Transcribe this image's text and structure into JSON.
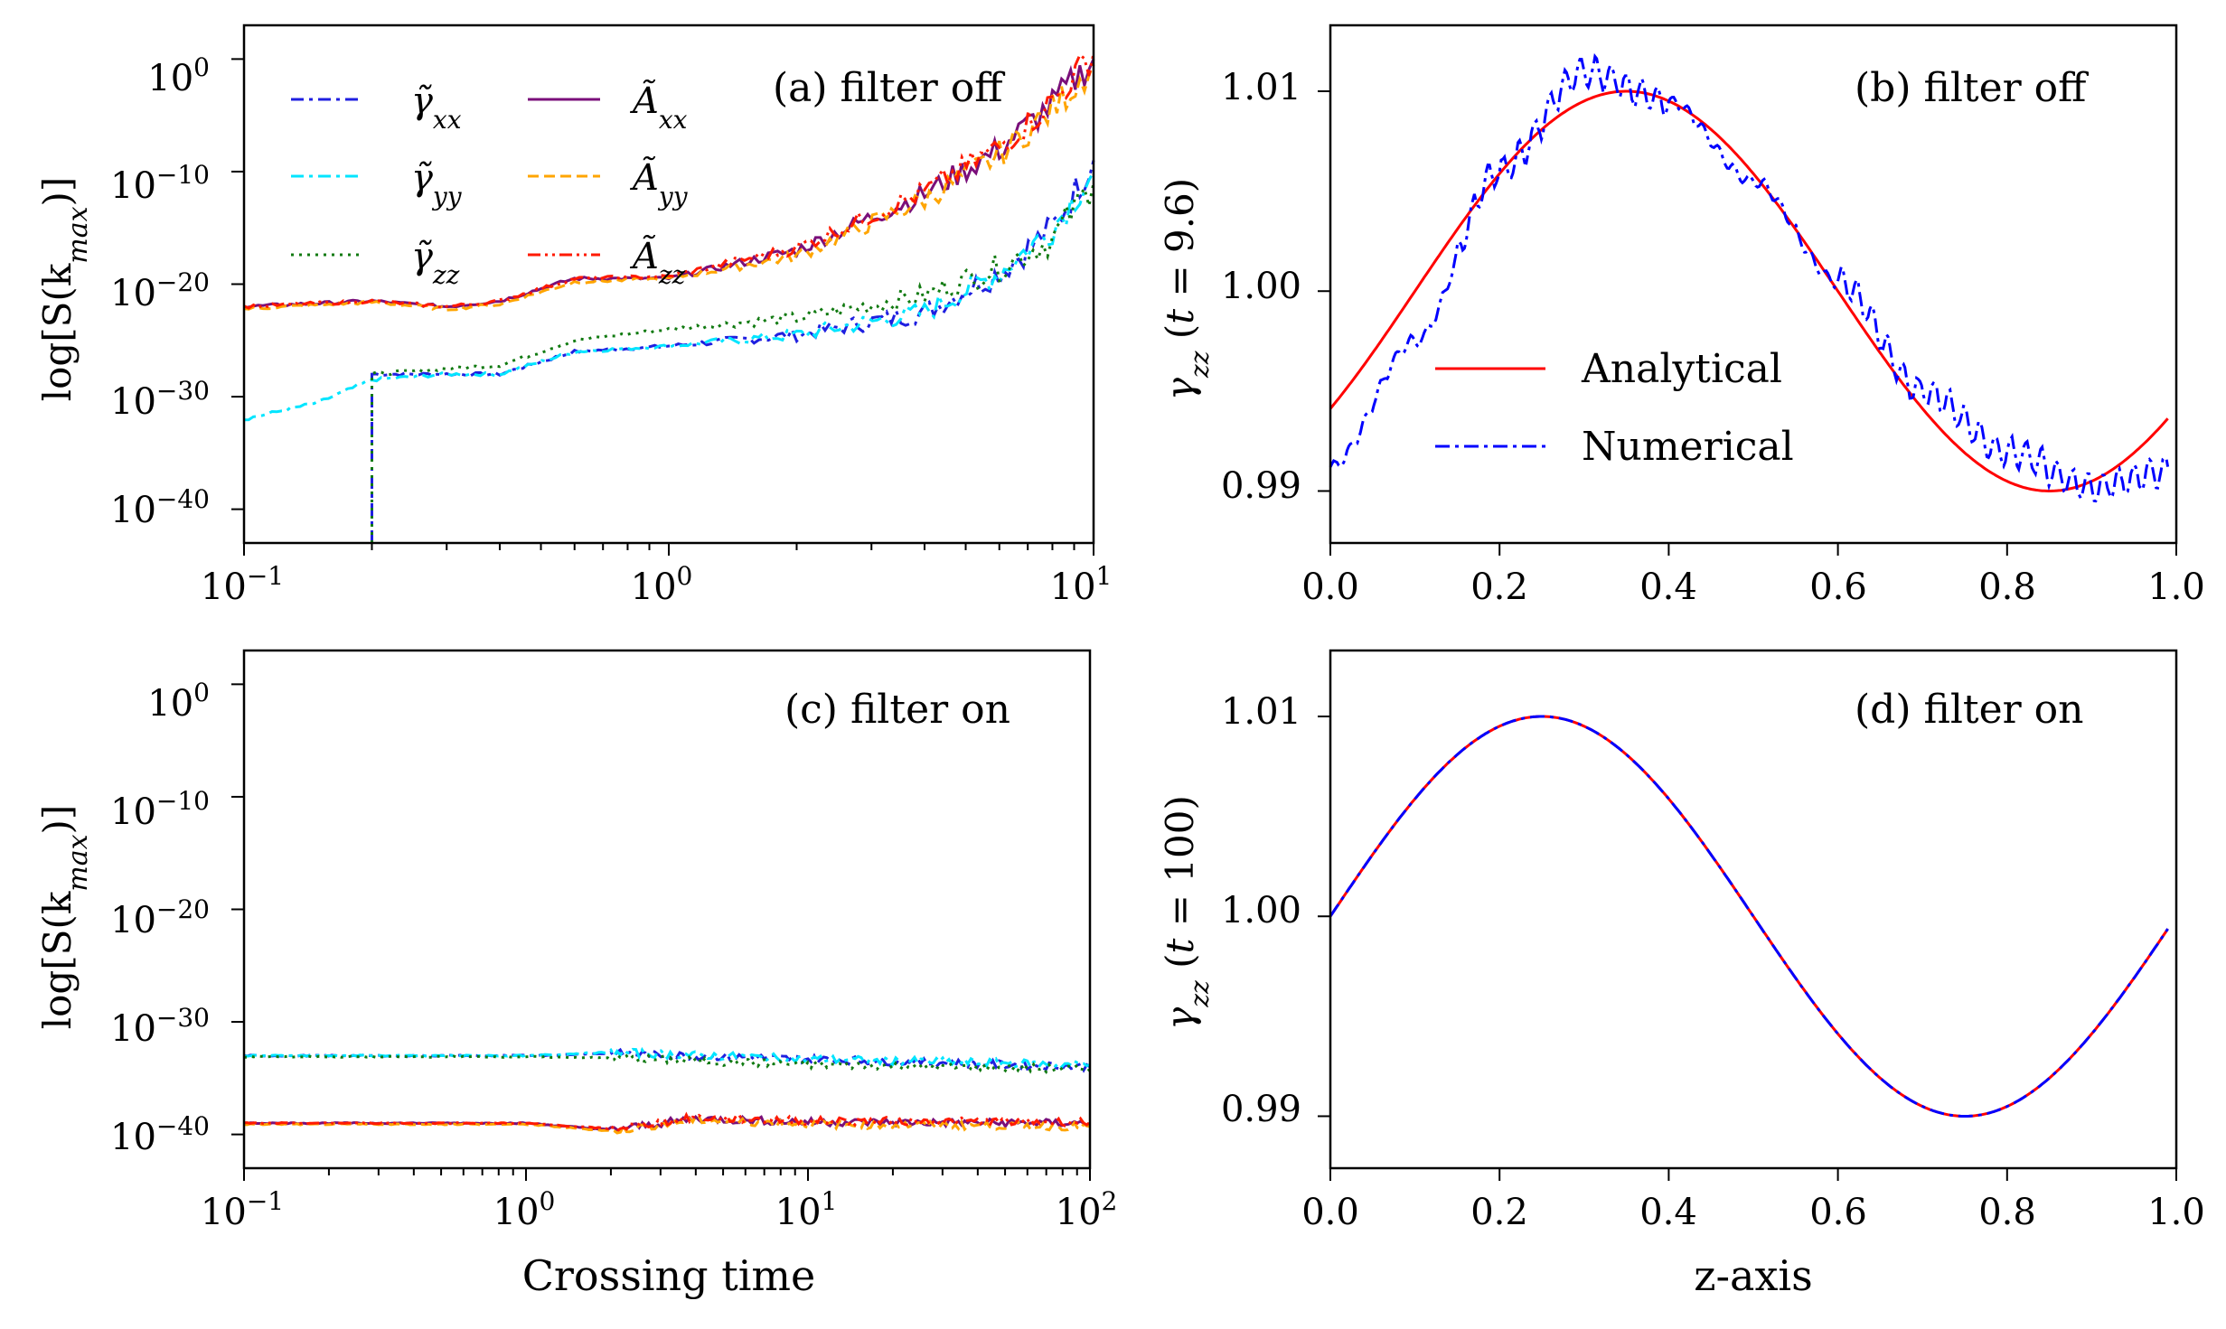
{
  "figure": {
    "colors": {
      "gxx": "#1f1fe0",
      "gyy": "#00e5ff",
      "gzz": "#117a11",
      "axx": "#7a0f7a",
      "ayy": "#ffa500",
      "azz": "#ff1a00",
      "analytical": "#ff0000",
      "numerical": "#0000ff",
      "axes": "#000000"
    }
  },
  "chart_data": [
    {
      "id": "a",
      "type": "line",
      "title": "(a) filter off",
      "xlabel": "",
      "ylabel": "log[S(k_max)]",
      "xscale": "log",
      "yscale": "log",
      "xlim": [
        0.1,
        10
      ],
      "ylim_log10": [
        -43,
        3
      ],
      "xticks": [
        "10^-1",
        "10^0",
        "10^1"
      ],
      "yticks": [
        "10^0",
        "10^-10",
        "10^-20",
        "10^-30",
        "10^-40"
      ],
      "legend": [
        "γ̃xx",
        "γ̃yy",
        "γ̃zz",
        "Ãxx",
        "Ãyy",
        "Ãzz"
      ],
      "series": [
        {
          "name": "γ̃xx",
          "x": [
            0.2,
            0.2,
            0.3,
            0.4,
            0.6,
            1.0,
            2.0,
            4.0,
            6.0,
            8.0,
            10.0
          ],
          "log10_y": [
            -44,
            -28,
            -28,
            -28,
            -26,
            -25.5,
            -24.5,
            -22.5,
            -19,
            -15,
            -9
          ]
        },
        {
          "name": "γ̃yy",
          "x": [
            0.1,
            0.15,
            0.2,
            0.3,
            0.4,
            0.6,
            1.0,
            2.0,
            4.0,
            6.0,
            8.0,
            10.0
          ],
          "log10_y": [
            -32,
            -30.5,
            -28.5,
            -28,
            -28,
            -26,
            -25.5,
            -24.5,
            -22.5,
            -19,
            -15,
            -10
          ]
        },
        {
          "name": "γ̃zz",
          "x": [
            0.2,
            0.2,
            0.3,
            0.4,
            0.6,
            1.0,
            2.0,
            4.0,
            6.0,
            8.0,
            10.0
          ],
          "log10_y": [
            -44,
            -28,
            -27.5,
            -27.2,
            -25,
            -24,
            -23,
            -21,
            -18.5,
            -16,
            -11
          ]
        },
        {
          "name": "Ãxx",
          "x": [
            0.1,
            0.2,
            0.3,
            0.4,
            0.6,
            1.0,
            2.0,
            4.0,
            6.0,
            8.0,
            10.0
          ],
          "log10_y": [
            -22,
            -21.5,
            -22,
            -21.5,
            -19.5,
            -19.5,
            -17,
            -12,
            -8,
            -4,
            0
          ]
        },
        {
          "name": "Ãyy",
          "x": [
            0.1,
            0.2,
            0.3,
            0.4,
            0.6,
            1.0,
            2.0,
            4.0,
            6.0,
            8.0,
            10.0
          ],
          "log10_y": [
            -22.2,
            -21.6,
            -22.2,
            -21.8,
            -19.8,
            -19.5,
            -17.5,
            -12.5,
            -8.5,
            -4.5,
            -0.5
          ]
        },
        {
          "name": "Ãzz",
          "x": [
            0.1,
            0.2,
            0.3,
            0.4,
            0.6,
            1.0,
            2.0,
            4.0,
            6.0,
            8.0,
            10.0
          ],
          "log10_y": [
            -22,
            -21.5,
            -22,
            -21.5,
            -19.5,
            -19.3,
            -16.8,
            -11.8,
            -7.8,
            -3.8,
            0.5
          ]
        }
      ]
    },
    {
      "id": "b",
      "type": "line",
      "title": "(b) filter off",
      "xlabel": "",
      "ylabel": "γzz (t = 9.6)",
      "xlim": [
        0.0,
        1.0
      ],
      "ylim": [
        0.9874,
        1.0133
      ],
      "xticks": [
        "0.0",
        "0.2",
        "0.4",
        "0.6",
        "0.8",
        "1.0"
      ],
      "yticks": [
        "1.01",
        "1.00",
        "0.99"
      ],
      "legend": [
        "Analytical",
        "Numerical"
      ],
      "series": [
        {
          "name": "Analytical",
          "formula": "1 + 0.01*sin(2π(z - 0.1))",
          "x_range": [
            0.0,
            0.99
          ]
        },
        {
          "name": "Numerical",
          "description": "noisy, high-frequency oscillation about a shifted sine",
          "x": [
            0.0,
            0.1,
            0.2,
            0.3,
            0.4,
            0.5,
            0.6,
            0.7,
            0.8,
            0.9,
            0.99
          ],
          "y": [
            0.9912,
            0.9975,
            1.006,
            1.011,
            1.0095,
            1.0055,
            1.0005,
            0.995,
            0.992,
            0.9902,
            0.991
          ]
        }
      ]
    },
    {
      "id": "c",
      "type": "line",
      "title": "(c) filter on",
      "xlabel": "Crossing time",
      "ylabel": "log[S(k_max)]",
      "xscale": "log",
      "yscale": "log",
      "xlim": [
        0.1,
        100
      ],
      "ylim_log10": [
        -43,
        3
      ],
      "xticks": [
        "10^-1",
        "10^0",
        "10^1",
        "10^2"
      ],
      "yticks": [
        "10^0",
        "10^-10",
        "10^-20",
        "10^-30",
        "10^-40"
      ],
      "series": [
        {
          "name": "γ̃xx",
          "x": [
            0.1,
            1.0,
            2.0,
            10.0,
            100.0
          ],
          "log10_y": [
            -33,
            -33,
            -32.8,
            -33.3,
            -34
          ]
        },
        {
          "name": "γ̃yy",
          "x": [
            0.1,
            1.0,
            2.0,
            10.0,
            100.0
          ],
          "log10_y": [
            -33,
            -33,
            -32.7,
            -33.3,
            -33.8
          ]
        },
        {
          "name": "γ̃zz",
          "x": [
            0.1,
            1.0,
            2.0,
            10.0,
            100.0
          ],
          "log10_y": [
            -33.1,
            -33.1,
            -33.2,
            -33.8,
            -34.2
          ]
        },
        {
          "name": "Ãxx",
          "x": [
            0.1,
            1.0,
            2.0,
            4.0,
            10.0,
            100.0
          ],
          "log10_y": [
            -39,
            -39,
            -39.6,
            -38.6,
            -38.9,
            -39
          ]
        },
        {
          "name": "Ãyy",
          "x": [
            0.1,
            1.0,
            2.0,
            4.0,
            10.0,
            100.0
          ],
          "log10_y": [
            -39.1,
            -39.1,
            -39.7,
            -38.7,
            -39.1,
            -39.3
          ]
        },
        {
          "name": "Ãzz",
          "x": [
            0.1,
            1.0,
            2.0,
            4.0,
            10.0,
            100.0
          ],
          "log10_y": [
            -39,
            -39,
            -39.5,
            -38.5,
            -38.8,
            -38.9
          ]
        }
      ]
    },
    {
      "id": "d",
      "type": "line",
      "title": "(d) filter on",
      "xlabel": "z-axis",
      "ylabel": "γzz (t = 100)",
      "xlim": [
        0.0,
        1.0
      ],
      "ylim": [
        0.9874,
        1.0133
      ],
      "xticks": [
        "0.0",
        "0.2",
        "0.4",
        "0.6",
        "0.8",
        "1.0"
      ],
      "yticks": [
        "1.01",
        "1.00",
        "0.99"
      ],
      "series": [
        {
          "name": "Analytical",
          "formula": "1 + 0.01*sin(2πz)",
          "x_range": [
            0.0,
            0.99
          ]
        },
        {
          "name": "Numerical",
          "formula": "1 + 0.01*sin(2πz)",
          "x_range": [
            0.0,
            0.99
          ]
        }
      ]
    }
  ]
}
